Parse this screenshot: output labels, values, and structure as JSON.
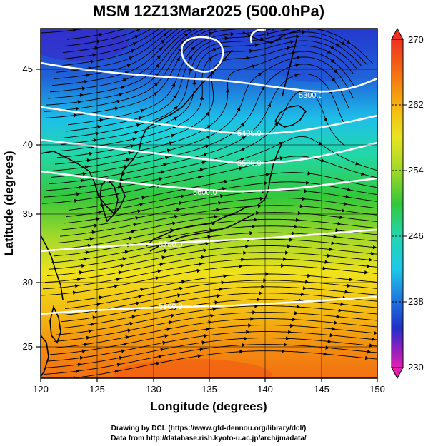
{
  "title": "MSM 12Z13Mar2025 (500.0hPa)",
  "xlabel": "Longitude (degrees)",
  "ylabel": "Latitude  (degrees)",
  "x_ticks": [
    "120",
    "125",
    "130",
    "135",
    "140",
    "145",
    "150"
  ],
  "y_ticks": [
    "25",
    "30",
    "35",
    "40",
    "45"
  ],
  "colorbar": {
    "ticks": [
      "270",
      "262",
      "254",
      "246",
      "238",
      "230"
    ],
    "min": 230,
    "max": 270
  },
  "contour_labels": [
    "5300.0",
    "5400.0",
    "5500.0",
    "5600.0",
    "5700.0",
    "5800.0"
  ],
  "credits": {
    "line1": "Drawing by DCL (https://www.gfd-dennou.org/library/dcl/)",
    "line2": "Data from http://database.rish.kyoto-u.ac.jp/arch/jmadata/"
  },
  "colors": {
    "cold": "#1a2fd6",
    "cyan": "#1ed8e0",
    "green": "#33c83a",
    "yellow": "#f2e21c",
    "orange": "#f39a10",
    "warm": "#f26a12",
    "contour": "#ffffff",
    "coast": "#000000"
  },
  "chart_data": {
    "type": "heatmap",
    "variable": "temperature (K) with streamlines and geopotential height contours",
    "xlim": [
      120,
      150
    ],
    "ylim": [
      22.5,
      48
    ],
    "color_range": [
      230,
      270
    ],
    "height_contours": [
      5300.0,
      5400.0,
      5500.0,
      5600.0,
      5700.0,
      5800.0
    ]
  }
}
